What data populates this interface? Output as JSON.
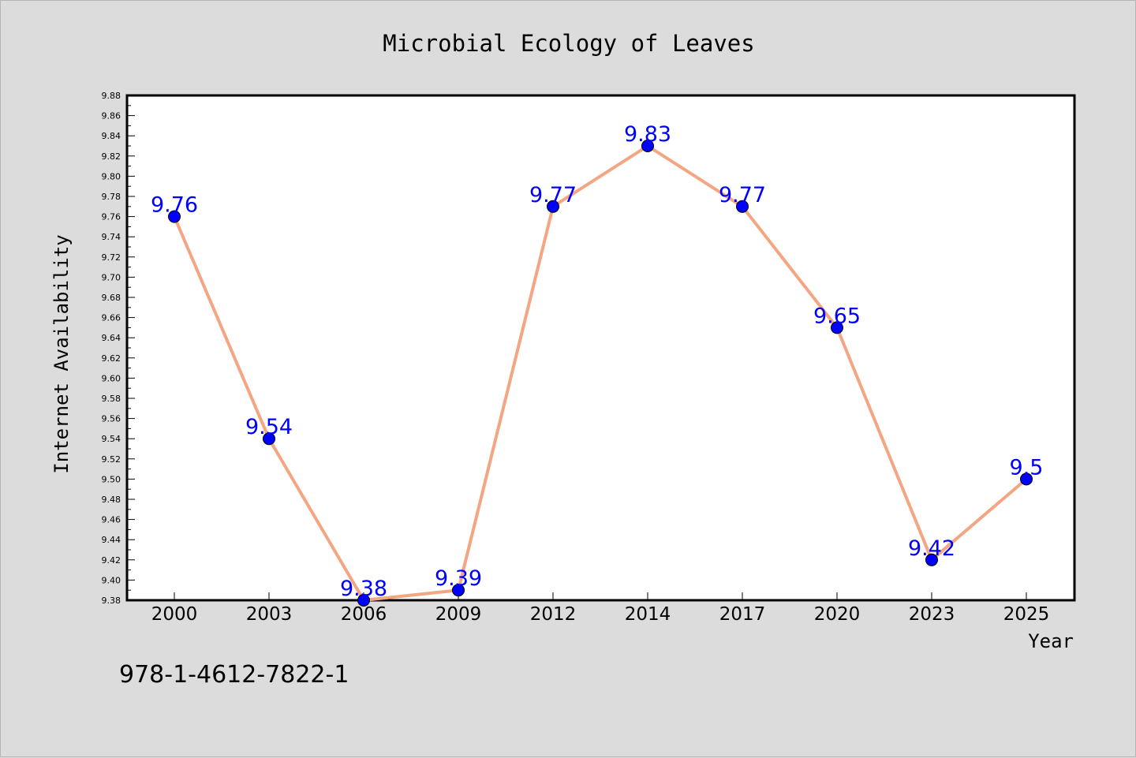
{
  "chart_data": {
    "type": "line",
    "title": "Microbial Ecology of Leaves",
    "xlabel": "Year",
    "ylabel": "Internet Availability",
    "categories": [
      "2000",
      "2003",
      "2006",
      "2009",
      "2012",
      "2014",
      "2017",
      "2020",
      "2023",
      "2025"
    ],
    "series": [
      {
        "values": [
          9.76,
          9.54,
          9.38,
          9.39,
          9.77,
          9.83,
          9.77,
          9.65,
          9.42,
          9.5
        ],
        "labels": [
          "9.76",
          "9.54",
          "9.38",
          "9.39",
          "9.77",
          "9.83",
          "9.77",
          "9.65",
          "9.42",
          "9.5"
        ]
      }
    ],
    "ylim": [
      9.38,
      9.88
    ],
    "yticks": [
      "9.38",
      "9.40",
      "9.42",
      "9.44",
      "9.46",
      "9.48",
      "9.50",
      "9.52",
      "9.54",
      "9.56",
      "9.58",
      "9.60",
      "9.62",
      "9.64",
      "9.66",
      "9.68",
      "9.70",
      "9.72",
      "9.74",
      "9.76",
      "9.78",
      "9.80",
      "9.82",
      "9.84",
      "9.86",
      "9.88"
    ],
    "grid": false,
    "legend": "none",
    "line_color": "#f4a582",
    "marker_color": "#0000ff",
    "label_color": "#0000ff"
  },
  "annotation": "978-1-4612-7822-1",
  "colors": {
    "background": "#dcdcdc",
    "plot_background": "#ffffff"
  }
}
